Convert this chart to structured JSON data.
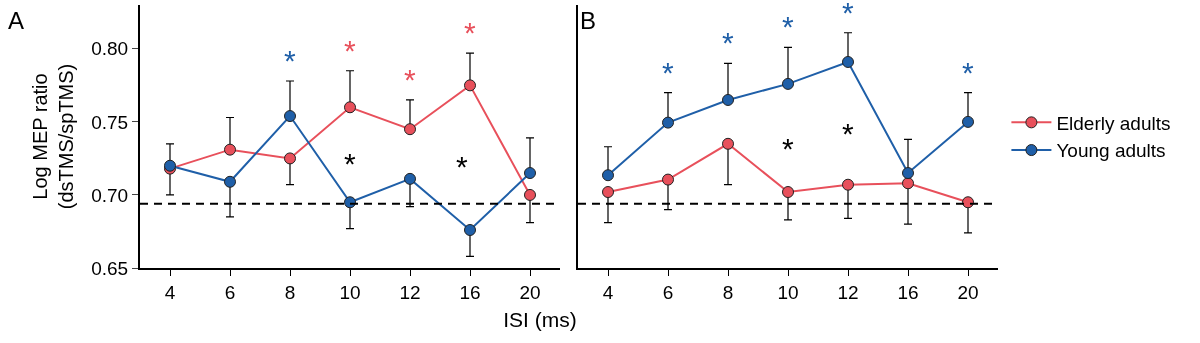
{
  "chart_data": [
    {
      "type": "line",
      "title": "A",
      "xlabel": "ISI (ms)",
      "ylabel": "Log MEP ratio\n(dsTMS/spTMS)",
      "categories": [
        "4",
        "6",
        "8",
        "10",
        "12",
        "16",
        "20"
      ],
      "ylim": [
        0.65,
        0.83
      ],
      "yticks": [
        {
          "value": 0.65,
          "label": "0.65"
        },
        {
          "value": 0.7,
          "label": "0.70"
        },
        {
          "value": 0.75,
          "label": "0.75"
        },
        {
          "value": 0.8,
          "label": "0.80"
        }
      ],
      "marker": "circle",
      "line_style": "solid",
      "grid": false,
      "legend": false,
      "series": [
        {
          "color": "#e8505b",
          "values": [
            0.718,
            0.731,
            0.725,
            0.76,
            0.745,
            0.775,
            0.7
          ],
          "errors": [
            [
              0.7,
              0.718
            ],
            [
              0.731,
              0.753
            ],
            [
              0.707,
              0.725
            ],
            [
              0.76,
              0.785
            ],
            [
              0.745,
              0.765
            ],
            [
              0.775,
              0.797
            ],
            [
              0.681,
              0.7
            ]
          ],
          "value_labels": [
            null,
            null,
            null,
            "*",
            "*",
            "*",
            null
          ]
        },
        {
          "color": "#1f5fa8",
          "values": [
            0.72,
            0.709,
            0.754,
            0.695,
            0.711,
            0.676,
            0.715
          ],
          "errors": [
            [
              0.72,
              0.735
            ],
            [
              0.685,
              0.709
            ],
            [
              0.754,
              0.778
            ],
            [
              0.677,
              0.695
            ],
            [
              0.692,
              0.711
            ],
            [
              0.658,
              0.676
            ],
            [
              0.715,
              0.739
            ]
          ],
          "value_labels": [
            null,
            null,
            "*",
            null,
            null,
            null,
            null
          ]
        }
      ],
      "ref_lines": [
        {
          "axis": "y",
          "value": 0.694,
          "line_style": "dashed",
          "color": "#000000"
        }
      ],
      "annotations": [
        "*",
        "*"
      ]
    },
    {
      "type": "line",
      "title": "B",
      "categories": [
        "4",
        "6",
        "8",
        "10",
        "12",
        "16",
        "20"
      ],
      "ylim": [
        0.65,
        0.83
      ],
      "tick_labels": "x",
      "marker": "circle",
      "line_style": "solid",
      "grid": false,
      "legend": "right",
      "series": [
        {
          "name": "Elderly adults",
          "color": "#e8505b",
          "values": [
            0.702,
            0.7105,
            0.735,
            0.702,
            0.707,
            0.708,
            0.695
          ],
          "errors": [
            [
              0.681,
              0.702
            ],
            [
              0.69,
              0.7105
            ],
            [
              0.707,
              0.735
            ],
            [
              0.683,
              0.702
            ],
            [
              0.684,
              0.707
            ],
            [
              0.68,
              0.708
            ],
            [
              0.674,
              0.695
            ]
          ]
        },
        {
          "name": "Young adults",
          "color": "#1f5fa8",
          "values": [
            0.7135,
            0.7495,
            0.765,
            0.776,
            0.791,
            0.715,
            0.75
          ],
          "errors": [
            [
              0.7135,
              0.733
            ],
            [
              0.7495,
              0.77
            ],
            [
              0.765,
              0.79
            ],
            [
              0.776,
              0.801
            ],
            [
              0.791,
              0.811
            ],
            [
              0.715,
              0.738
            ],
            [
              0.75,
              0.77
            ]
          ],
          "value_labels": [
            null,
            "*",
            "*",
            "*",
            "*",
            null,
            "*"
          ]
        }
      ],
      "ref_lines": [
        {
          "axis": "y",
          "value": 0.694,
          "line_style": "dashed",
          "color": "#000000"
        }
      ],
      "annotations": [
        "*",
        "*"
      ]
    }
  ]
}
